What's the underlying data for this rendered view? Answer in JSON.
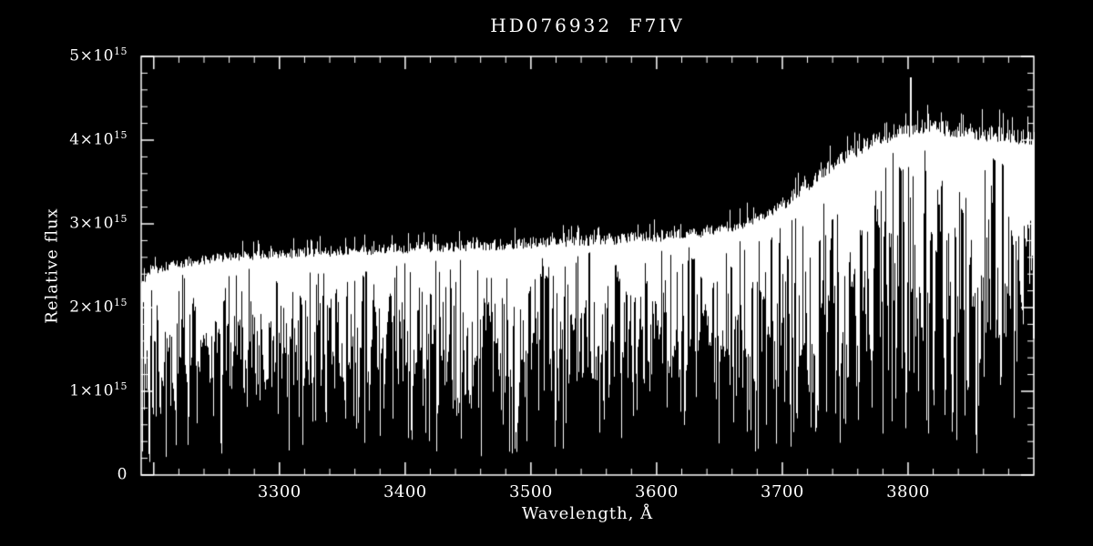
{
  "chart_data": {
    "type": "line",
    "title": "HD076932  F7IV",
    "xlabel": "Wavelength, Å",
    "ylabel": "Relative flux",
    "xlim": [
      3190,
      3900
    ],
    "ylim": [
      0,
      5
    ],
    "y_unit_exponent": 15,
    "background": "#000000",
    "line_color": "#ffffff",
    "grid": false,
    "legend": false,
    "xticks": [
      {
        "value": 3300,
        "label": "3300"
      },
      {
        "value": 3400,
        "label": "3400"
      },
      {
        "value": 3500,
        "label": "3500"
      },
      {
        "value": 3600,
        "label": "3600"
      },
      {
        "value": 3700,
        "label": "3700"
      },
      {
        "value": 3800,
        "label": "3800"
      }
    ],
    "yticks": [
      {
        "value": 0,
        "mantissa": "0",
        "sup": ""
      },
      {
        "value": 1,
        "mantissa": "1×10",
        "sup": "15"
      },
      {
        "value": 2,
        "mantissa": "2×10",
        "sup": "15"
      },
      {
        "value": 3,
        "mantissa": "3×10",
        "sup": "15"
      },
      {
        "value": 4,
        "mantissa": "4×10",
        "sup": "15"
      },
      {
        "value": 5,
        "mantissa": "5×10",
        "sup": "15"
      }
    ],
    "spectrum": {
      "description": "Dense stellar absorption-line spectrum (units of 1e15). Continuum rises from ~2.45 at 3200 Å to ~4.15 near 3820 Å; deep absorption lines throughout; narrow emission spike near 3802 Å reaching ~4.75.",
      "seed": 21,
      "continuum": [
        [
          3190,
          2.3
        ],
        [
          3200,
          2.45
        ],
        [
          3220,
          2.52
        ],
        [
          3240,
          2.56
        ],
        [
          3260,
          2.6
        ],
        [
          3280,
          2.62
        ],
        [
          3300,
          2.63
        ],
        [
          3320,
          2.64
        ],
        [
          3340,
          2.66
        ],
        [
          3360,
          2.67
        ],
        [
          3380,
          2.68
        ],
        [
          3400,
          2.7
        ],
        [
          3420,
          2.71
        ],
        [
          3440,
          2.72
        ],
        [
          3460,
          2.73
        ],
        [
          3480,
          2.74
        ],
        [
          3500,
          2.76
        ],
        [
          3520,
          2.77
        ],
        [
          3540,
          2.79
        ],
        [
          3560,
          2.8
        ],
        [
          3580,
          2.82
        ],
        [
          3600,
          2.84
        ],
        [
          3620,
          2.87
        ],
        [
          3640,
          2.9
        ],
        [
          3660,
          2.96
        ],
        [
          3680,
          3.05
        ],
        [
          3700,
          3.22
        ],
        [
          3715,
          3.4
        ],
        [
          3730,
          3.58
        ],
        [
          3745,
          3.75
        ],
        [
          3760,
          3.88
        ],
        [
          3775,
          4.0
        ],
        [
          3790,
          4.08
        ],
        [
          3805,
          4.12
        ],
        [
          3820,
          4.15
        ],
        [
          3835,
          4.12
        ],
        [
          3850,
          4.08
        ],
        [
          3870,
          4.05
        ],
        [
          3900,
          4.02
        ]
      ],
      "deep_lines": [
        [
          3204,
          1.1,
          1.0
        ],
        [
          3217,
          0.9,
          1.0
        ],
        [
          3227,
          0.35,
          1.5
        ],
        [
          3234,
          0.6,
          1.0
        ],
        [
          3247,
          0.5,
          1.0
        ],
        [
          3262,
          0.8,
          1.0
        ],
        [
          3281,
          0.7,
          1.0
        ],
        [
          3306,
          0.9,
          1.0
        ],
        [
          3323,
          0.8,
          1.0
        ],
        [
          3337,
          0.6,
          1.0
        ],
        [
          3352,
          0.45,
          1.2
        ],
        [
          3361,
          0.55,
          1.0
        ],
        [
          3371,
          0.7,
          1.0
        ],
        [
          3383,
          0.5,
          1.0
        ],
        [
          3394,
          0.8,
          1.0
        ],
        [
          3414,
          0.75,
          1.0
        ],
        [
          3426,
          0.7,
          1.0
        ],
        [
          3441,
          0.55,
          1.2
        ],
        [
          3454,
          0.8,
          1.0
        ],
        [
          3476,
          0.65,
          1.0
        ],
        [
          3490,
          0.8,
          1.0
        ],
        [
          3506,
          0.7,
          1.0
        ],
        [
          3522,
          0.75,
          1.0
        ],
        [
          3541,
          0.8,
          1.0
        ],
        [
          3558,
          0.65,
          1.0
        ],
        [
          3572,
          0.7,
          1.0
        ],
        [
          3581,
          0.55,
          1.2
        ],
        [
          3594,
          0.75,
          1.0
        ],
        [
          3608,
          0.8,
          1.0
        ],
        [
          3619,
          0.7,
          1.0
        ],
        [
          3631,
          0.75,
          1.0
        ],
        [
          3647,
          0.8,
          1.0
        ],
        [
          3663,
          0.9,
          1.0
        ],
        [
          3679,
          1.0,
          1.0
        ],
        [
          3694,
          0.9,
          1.0
        ],
        [
          3706,
          0.7,
          1.0
        ],
        [
          3712,
          0.8,
          1.0
        ],
        [
          3720,
          0.6,
          1.0
        ],
        [
          3728,
          0.75,
          1.0
        ],
        [
          3735,
          0.55,
          1.0
        ],
        [
          3742,
          0.7,
          1.0
        ],
        [
          3750,
          0.6,
          1.0
        ],
        [
          3759,
          0.65,
          1.0
        ],
        [
          3771,
          0.8,
          2.0
        ],
        [
          3784,
          1.2,
          1.0
        ],
        [
          3790,
          0.8,
          1.0
        ],
        [
          3798,
          0.5,
          2.0
        ],
        [
          3808,
          1.0,
          1.0
        ],
        [
          3820,
          0.55,
          1.5
        ],
        [
          3828,
          1.0,
          1.0
        ],
        [
          3835,
          0.45,
          2.5
        ],
        [
          3847,
          1.3,
          1.0
        ],
        [
          3856,
          0.7,
          1.5
        ],
        [
          3865,
          1.5,
          1.0
        ]
      ],
      "emission_spike": {
        "x": 3802,
        "peak": 4.75
      }
    }
  }
}
